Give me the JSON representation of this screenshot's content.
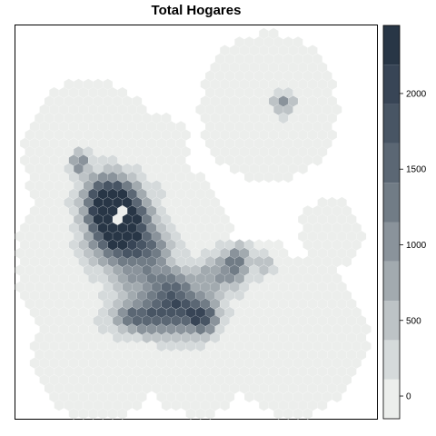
{
  "chart_data": {
    "type": "heatmap",
    "title": "Total Hogares",
    "xlabel": "",
    "ylabel": "",
    "colorbar": {
      "range": [
        -150,
        2450
      ],
      "ticks": [
        0,
        500,
        1000,
        1500,
        2000
      ],
      "bins": [
        {
          "lo": -150,
          "hi": 110,
          "color": "#ECEEEC"
        },
        {
          "lo": 110,
          "hi": 370,
          "color": "#D5DADB"
        },
        {
          "lo": 370,
          "hi": 630,
          "color": "#BDC3C6"
        },
        {
          "lo": 630,
          "hi": 890,
          "color": "#A2AAAF"
        },
        {
          "lo": 890,
          "hi": 1150,
          "color": "#8A939B"
        },
        {
          "lo": 1150,
          "hi": 1410,
          "color": "#717C86"
        },
        {
          "lo": 1410,
          "hi": 1670,
          "color": "#5B6774"
        },
        {
          "lo": 1670,
          "hi": 1930,
          "color": "#485564"
        },
        {
          "lo": 1930,
          "hi": 2190,
          "color": "#384556"
        },
        {
          "lo": 2190,
          "hi": 2450,
          "color": "#283646"
        }
      ]
    },
    "region_base": 0,
    "region": [
      {
        "cx": 0.21,
        "cy": 0.33,
        "r": 0.19
      },
      {
        "cx": 0.19,
        "cy": 0.6,
        "r": 0.2
      },
      {
        "cx": 0.23,
        "cy": 0.83,
        "r": 0.18
      },
      {
        "cx": 0.5,
        "cy": 0.82,
        "r": 0.17
      },
      {
        "cx": 0.77,
        "cy": 0.79,
        "r": 0.2
      },
      {
        "cx": 0.65,
        "cy": 0.72,
        "r": 0.18
      },
      {
        "cx": 0.4,
        "cy": 0.55,
        "r": 0.2
      },
      {
        "cx": 0.7,
        "cy": 0.21,
        "r": 0.19
      },
      {
        "cx": 0.87,
        "cy": 0.53,
        "r": 0.09
      },
      {
        "cx": 0.38,
        "cy": 0.32,
        "r": 0.1
      }
    ],
    "clusters": [
      {
        "cx": 0.29,
        "cy": 0.48,
        "sx": 0.05,
        "sy": 0.05,
        "peak": 2350
      },
      {
        "cx": 0.25,
        "cy": 0.44,
        "sx": 0.04,
        "sy": 0.04,
        "peak": 1700
      },
      {
        "cx": 0.28,
        "cy": 0.54,
        "sx": 0.05,
        "sy": 0.05,
        "peak": 1600
      },
      {
        "cx": 0.37,
        "cy": 0.57,
        "sx": 0.04,
        "sy": 0.04,
        "peak": 1200
      },
      {
        "cx": 0.34,
        "cy": 0.74,
        "sx": 0.05,
        "sy": 0.03,
        "peak": 1500
      },
      {
        "cx": 0.45,
        "cy": 0.73,
        "sx": 0.05,
        "sy": 0.04,
        "peak": 1350
      },
      {
        "cx": 0.52,
        "cy": 0.74,
        "sx": 0.03,
        "sy": 0.03,
        "peak": 1600
      },
      {
        "cx": 0.43,
        "cy": 0.67,
        "sx": 0.04,
        "sy": 0.04,
        "peak": 1100
      },
      {
        "cx": 0.55,
        "cy": 0.64,
        "sx": 0.05,
        "sy": 0.03,
        "peak": 800
      },
      {
        "cx": 0.61,
        "cy": 0.6,
        "sx": 0.03,
        "sy": 0.03,
        "peak": 1100
      },
      {
        "cx": 0.74,
        "cy": 0.2,
        "sx": 0.02,
        "sy": 0.02,
        "peak": 1000
      },
      {
        "cx": 0.18,
        "cy": 0.35,
        "sx": 0.015,
        "sy": 0.02,
        "peak": 1300
      },
      {
        "cx": 0.69,
        "cy": 0.61,
        "sx": 0.015,
        "sy": 0.015,
        "peak": 700
      },
      {
        "cx": 0.34,
        "cy": 0.65,
        "sx": 0.05,
        "sy": 0.03,
        "peak": 700
      }
    ],
    "holes": [
      {
        "cx": 0.29,
        "cy": 0.48,
        "r": 0.018
      }
    ]
  }
}
